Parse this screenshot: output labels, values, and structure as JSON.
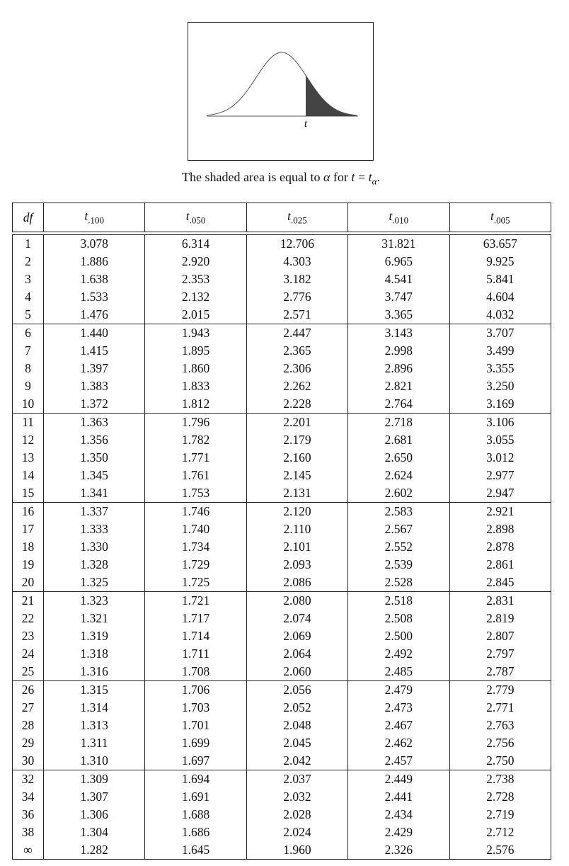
{
  "figure": {
    "curve_label": "t",
    "caption_prefix": "The shaded area is equal to",
    "caption_alpha": "α",
    "caption_for": "for",
    "caption_eq_lhs": "t",
    "caption_eq": "=",
    "caption_eq_rhs": "t",
    "caption_eq_rhs_sub": "α",
    "caption_end": "."
  },
  "table": {
    "header": {
      "df": "df",
      "t_symbol": "t",
      "columns": [
        ".100",
        ".050",
        ".025",
        ".010",
        ".005"
      ]
    },
    "groups": [
      [
        {
          "df": "1",
          "v": [
            "3.078",
            "6.314",
            "12.706",
            "31.821",
            "63.657"
          ]
        },
        {
          "df": "2",
          "v": [
            "1.886",
            "2.920",
            "4.303",
            "6.965",
            "9.925"
          ]
        },
        {
          "df": "3",
          "v": [
            "1.638",
            "2.353",
            "3.182",
            "4.541",
            "5.841"
          ]
        },
        {
          "df": "4",
          "v": [
            "1.533",
            "2.132",
            "2.776",
            "3.747",
            "4.604"
          ]
        },
        {
          "df": "5",
          "v": [
            "1.476",
            "2.015",
            "2.571",
            "3.365",
            "4.032"
          ]
        }
      ],
      [
        {
          "df": "6",
          "v": [
            "1.440",
            "1.943",
            "2.447",
            "3.143",
            "3.707"
          ]
        },
        {
          "df": "7",
          "v": [
            "1.415",
            "1.895",
            "2.365",
            "2.998",
            "3.499"
          ]
        },
        {
          "df": "8",
          "v": [
            "1.397",
            "1.860",
            "2.306",
            "2.896",
            "3.355"
          ]
        },
        {
          "df": "9",
          "v": [
            "1.383",
            "1.833",
            "2.262",
            "2.821",
            "3.250"
          ]
        },
        {
          "df": "10",
          "v": [
            "1.372",
            "1.812",
            "2.228",
            "2.764",
            "3.169"
          ]
        }
      ],
      [
        {
          "df": "11",
          "v": [
            "1.363",
            "1.796",
            "2.201",
            "2.718",
            "3.106"
          ]
        },
        {
          "df": "12",
          "v": [
            "1.356",
            "1.782",
            "2.179",
            "2.681",
            "3.055"
          ]
        },
        {
          "df": "13",
          "v": [
            "1.350",
            "1.771",
            "2.160",
            "2.650",
            "3.012"
          ]
        },
        {
          "df": "14",
          "v": [
            "1.345",
            "1.761",
            "2.145",
            "2.624",
            "2.977"
          ]
        },
        {
          "df": "15",
          "v": [
            "1.341",
            "1.753",
            "2.131",
            "2.602",
            "2.947"
          ]
        }
      ],
      [
        {
          "df": "16",
          "v": [
            "1.337",
            "1.746",
            "2.120",
            "2.583",
            "2.921"
          ]
        },
        {
          "df": "17",
          "v": [
            "1.333",
            "1.740",
            "2.110",
            "2.567",
            "2.898"
          ]
        },
        {
          "df": "18",
          "v": [
            "1.330",
            "1.734",
            "2.101",
            "2.552",
            "2.878"
          ]
        },
        {
          "df": "19",
          "v": [
            "1.328",
            "1.729",
            "2.093",
            "2.539",
            "2.861"
          ]
        },
        {
          "df": "20",
          "v": [
            "1.325",
            "1.725",
            "2.086",
            "2.528",
            "2.845"
          ]
        }
      ],
      [
        {
          "df": "21",
          "v": [
            "1.323",
            "1.721",
            "2.080",
            "2.518",
            "2.831"
          ]
        },
        {
          "df": "22",
          "v": [
            "1.321",
            "1.717",
            "2.074",
            "2.508",
            "2.819"
          ]
        },
        {
          "df": "23",
          "v": [
            "1.319",
            "1.714",
            "2.069",
            "2.500",
            "2.807"
          ]
        },
        {
          "df": "24",
          "v": [
            "1.318",
            "1.711",
            "2.064",
            "2.492",
            "2.797"
          ]
        },
        {
          "df": "25",
          "v": [
            "1.316",
            "1.708",
            "2.060",
            "2.485",
            "2.787"
          ]
        }
      ],
      [
        {
          "df": "26",
          "v": [
            "1.315",
            "1.706",
            "2.056",
            "2.479",
            "2.779"
          ]
        },
        {
          "df": "27",
          "v": [
            "1.314",
            "1.703",
            "2.052",
            "2.473",
            "2.771"
          ]
        },
        {
          "df": "28",
          "v": [
            "1.313",
            "1.701",
            "2.048",
            "2.467",
            "2.763"
          ]
        },
        {
          "df": "29",
          "v": [
            "1.311",
            "1.699",
            "2.045",
            "2.462",
            "2.756"
          ]
        },
        {
          "df": "30",
          "v": [
            "1.310",
            "1.697",
            "2.042",
            "2.457",
            "2.750"
          ]
        }
      ],
      [
        {
          "df": "32",
          "v": [
            "1.309",
            "1.694",
            "2.037",
            "2.449",
            "2.738"
          ]
        },
        {
          "df": "34",
          "v": [
            "1.307",
            "1.691",
            "2.032",
            "2.441",
            "2.728"
          ]
        },
        {
          "df": "36",
          "v": [
            "1.306",
            "1.688",
            "2.028",
            "2.434",
            "2.719"
          ]
        },
        {
          "df": "38",
          "v": [
            "1.304",
            "1.686",
            "2.024",
            "2.429",
            "2.712"
          ]
        },
        {
          "df": "∞",
          "v": [
            "1.282",
            "1.645",
            "1.960",
            "2.326",
            "2.576"
          ]
        }
      ]
    ]
  }
}
